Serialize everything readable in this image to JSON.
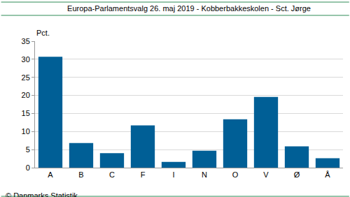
{
  "chart_data": {
    "type": "bar",
    "title": "Europa-Parlamentsvalg 26. maj 2019 - Kobberbakkeskolen - Sct. Jørge",
    "y_label": "Pct.",
    "categories": [
      "A",
      "B",
      "C",
      "F",
      "I",
      "N",
      "O",
      "V",
      "Ø",
      "Å"
    ],
    "values": [
      30.7,
      6.8,
      4.0,
      11.7,
      1.6,
      4.7,
      13.4,
      19.6,
      5.9,
      2.6
    ],
    "color": "#005f96",
    "ylim": [
      0,
      35
    ],
    "yticks": [
      0,
      5,
      10,
      15,
      20,
      25,
      30,
      35
    ],
    "grid": true,
    "annotations": [
      "© Danmarks Statistik"
    ]
  }
}
